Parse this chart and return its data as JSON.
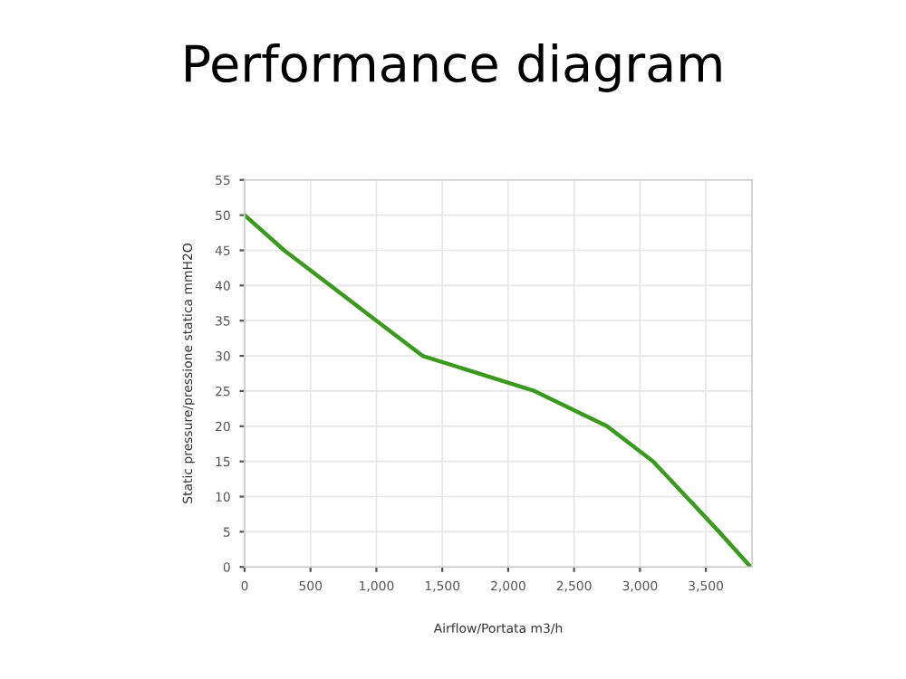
{
  "chart_data": {
    "type": "line",
    "title": "Performance diagram",
    "xlabel": "Airflow/Portata m3/h",
    "ylabel": "Static pressure/pressione statica mmH2O",
    "x": [
      0,
      300,
      650,
      1000,
      1350,
      2200,
      2750,
      3100,
      3350,
      3600,
      3840
    ],
    "series": [
      {
        "color": "#3a9a1e",
        "values": [
          50,
          45,
          40,
          35,
          30,
          25,
          20,
          15,
          10,
          5,
          0
        ]
      }
    ],
    "xlim": [
      0,
      3850
    ],
    "ylim": [
      0,
      55
    ],
    "xticks": [
      0,
      500,
      {
        "value": 1000,
        "label": "1,000"
      },
      {
        "value": 1500,
        "label": "1,500"
      },
      {
        "value": 2000,
        "label": "2,000"
      },
      {
        "value": 2500,
        "label": "2,500"
      },
      {
        "value": 3000,
        "label": "3,000"
      },
      {
        "value": 3500,
        "label": "3,500"
      }
    ],
    "yticks": [
      0,
      5,
      10,
      15,
      20,
      25,
      30,
      35,
      40,
      45,
      50,
      55
    ],
    "grid": true,
    "marker": "none",
    "line_style": "solid",
    "legend": false
  }
}
